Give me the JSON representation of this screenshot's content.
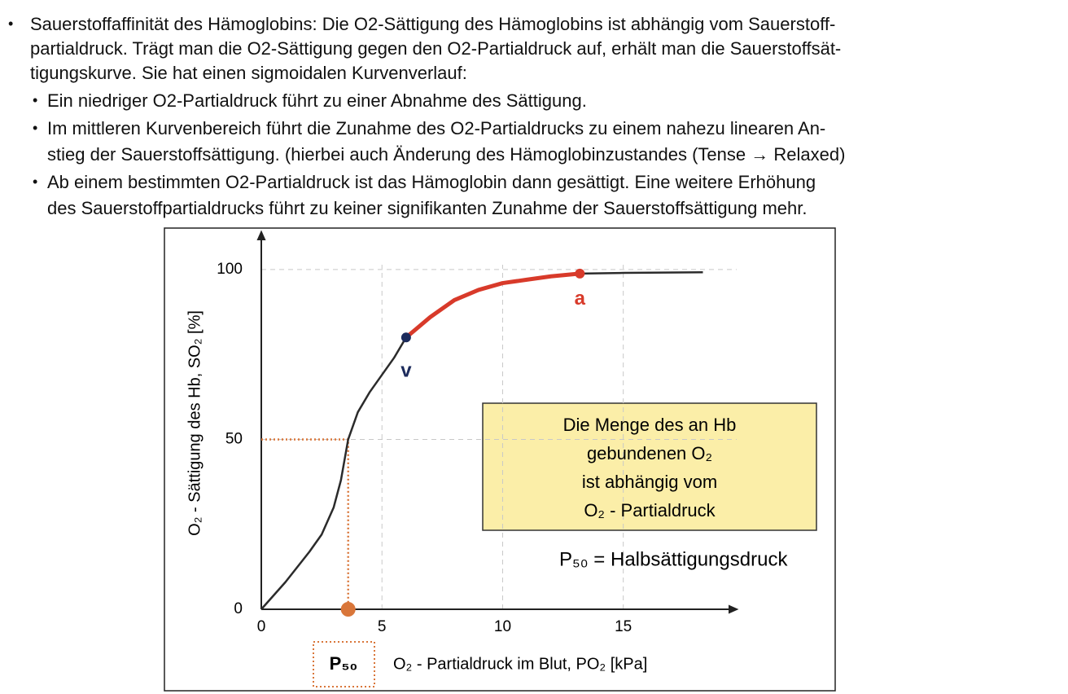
{
  "bullets": [
    {
      "lines": [
        "Sauerstoffaffinität des Hämoglobins: Die O2-Sättigung des Hämoglobins ist abhängig vom Sauerstoff-",
        "partialdruck. Trägt man die O2-Sättigung gegen den O2-Partialdruck auf, erhält man die Sauerstoffsät-",
        "tigungskurve. Sie hat einen sigmoidalen Kurvenverlauf:"
      ],
      "subbullets": [
        {
          "lines": [
            "Ein niedriger O2-Partialdruck führt zu einer Abnahme des Sättigung."
          ]
        },
        {
          "lines": [
            "Im mittleren Kurvenbereich führt die Zunahme des O2-Partialdrucks zu einem nahezu linearen An-",
            "stieg der Sauerstoffsättigung. (hierbei auch Änderung des Hämoglobinzustandes (Tense → Relaxed)"
          ]
        },
        {
          "lines": [
            "Ab einem bestimmten O2-Partialdruck ist das Hämoglobin dann gesättigt. Eine weitere Erhöhung",
            "des Sauerstoffpartialdrucks führt zu keiner signifikanten Zunahme der Sauerstoffsättigung mehr."
          ]
        }
      ]
    }
  ],
  "chart_data": {
    "type": "line",
    "x_label": "O₂ - Partialdruck im Blut,  PO₂  [kPa]",
    "y_label": "O₂ - Sättigung des Hb, SO₂  [%]",
    "xlim": [
      0,
      19.7
    ],
    "ylim": [
      0,
      111
    ],
    "xticks": [
      0,
      5,
      10,
      15
    ],
    "yticks": [
      0,
      50,
      100
    ],
    "grid": true,
    "series": [
      {
        "color": "#2b2b2b",
        "x": [
          0,
          1,
          2,
          2.5,
          3,
          3.3,
          3.6,
          4,
          4.5,
          5,
          5.5,
          6,
          7,
          8,
          9,
          10,
          11,
          12,
          13.2,
          15,
          18.3
        ],
        "values": [
          0,
          8,
          17,
          22,
          30,
          38,
          50,
          58,
          64,
          69,
          74,
          80,
          86,
          91,
          94,
          96,
          97,
          98,
          98.8,
          99,
          99.2
        ]
      },
      {
        "color": "#d83a2a",
        "x": [
          6,
          7,
          8,
          9,
          10,
          11,
          12,
          13.2
        ],
        "values": [
          80,
          86,
          91,
          94,
          96,
          97,
          98,
          98.8
        ]
      }
    ],
    "points": [
      {
        "label": "v",
        "x": 6,
        "y": 80,
        "color": "#1c2b5c"
      },
      {
        "label": "a",
        "x": 13.2,
        "y": 98.8,
        "color": "#d83a2a"
      }
    ],
    "p50": {
      "label": "P₅₀",
      "x": 3.6,
      "y": 50,
      "color": "#d9763a"
    },
    "info_box": [
      "Die Menge des an Hb",
      "gebundenen O₂",
      "ist abhängig vom",
      "O₂ - Partialdruck"
    ],
    "note": "P₅₀ = Halbsättigungsdruck"
  }
}
